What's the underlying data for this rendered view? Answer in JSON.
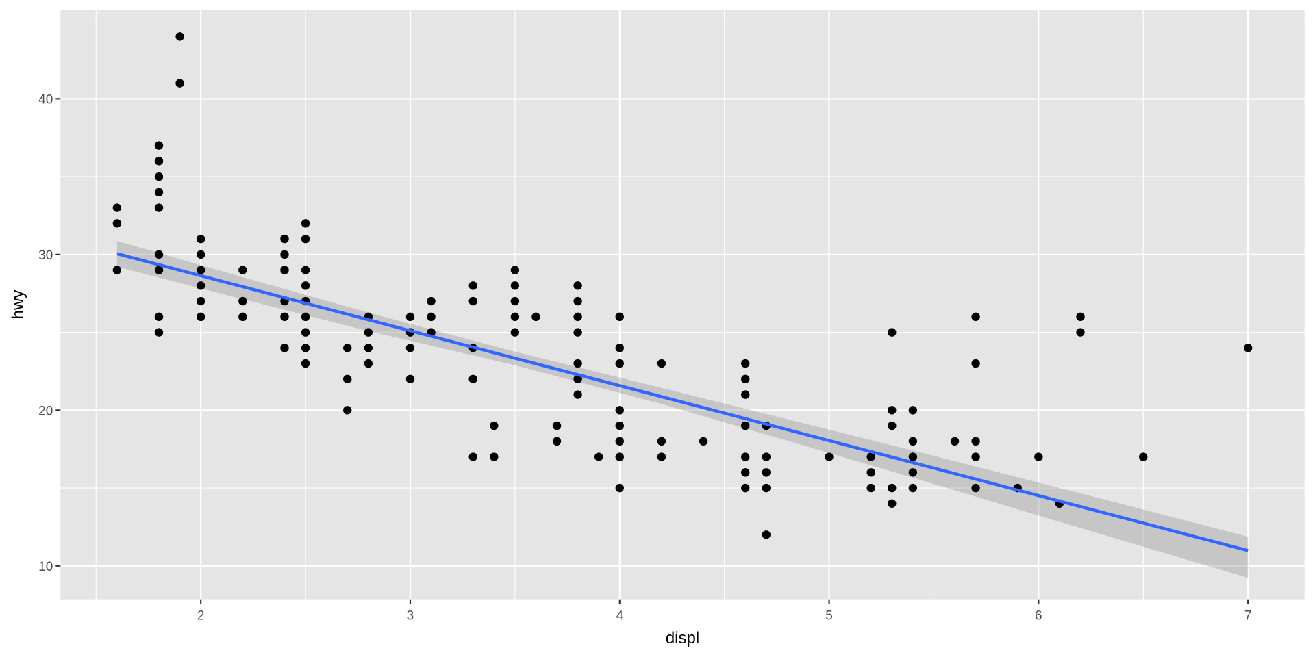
{
  "chart_data": {
    "type": "scatter",
    "title": "",
    "xlabel": "displ",
    "ylabel": "hwy",
    "xlim": [
      1.33,
      7.27
    ],
    "ylim": [
      7.85,
      45.7
    ],
    "x_ticks": [
      2,
      3,
      4,
      5,
      6,
      7
    ],
    "x_tick_labels": [
      "2",
      "3",
      "4",
      "5",
      "6",
      "7"
    ],
    "x_minor": [
      1.5,
      2.5,
      3.5,
      4.5,
      5.5,
      6.5
    ],
    "y_ticks": [
      10,
      20,
      30,
      40
    ],
    "y_tick_labels": [
      "10",
      "20",
      "30",
      "40"
    ],
    "y_minor": [
      15,
      25,
      35,
      45
    ],
    "grid": true,
    "legend": "none",
    "points": [
      [
        1.6,
        29
      ],
      [
        1.6,
        32
      ],
      [
        1.6,
        33
      ],
      [
        1.8,
        25
      ],
      [
        1.8,
        26
      ],
      [
        1.8,
        29
      ],
      [
        1.8,
        30
      ],
      [
        1.8,
        33
      ],
      [
        1.8,
        34
      ],
      [
        1.8,
        35
      ],
      [
        1.8,
        36
      ],
      [
        1.8,
        37
      ],
      [
        1.9,
        41
      ],
      [
        1.9,
        44
      ],
      [
        2.0,
        26
      ],
      [
        2.0,
        27
      ],
      [
        2.0,
        28
      ],
      [
        2.0,
        29
      ],
      [
        2.0,
        30
      ],
      [
        2.0,
        31
      ],
      [
        2.2,
        26
      ],
      [
        2.2,
        27
      ],
      [
        2.2,
        29
      ],
      [
        2.4,
        24
      ],
      [
        2.4,
        26
      ],
      [
        2.4,
        27
      ],
      [
        2.4,
        29
      ],
      [
        2.4,
        30
      ],
      [
        2.4,
        31
      ],
      [
        2.5,
        23
      ],
      [
        2.5,
        24
      ],
      [
        2.5,
        25
      ],
      [
        2.5,
        26
      ],
      [
        2.5,
        27
      ],
      [
        2.5,
        28
      ],
      [
        2.5,
        29
      ],
      [
        2.5,
        31
      ],
      [
        2.5,
        32
      ],
      [
        2.7,
        20
      ],
      [
        2.7,
        22
      ],
      [
        2.7,
        24
      ],
      [
        2.8,
        23
      ],
      [
        2.8,
        24
      ],
      [
        2.8,
        25
      ],
      [
        2.8,
        26
      ],
      [
        3.0,
        22
      ],
      [
        3.0,
        24
      ],
      [
        3.0,
        25
      ],
      [
        3.0,
        26
      ],
      [
        3.1,
        25
      ],
      [
        3.1,
        26
      ],
      [
        3.1,
        27
      ],
      [
        3.3,
        17
      ],
      [
        3.3,
        22
      ],
      [
        3.3,
        24
      ],
      [
        3.3,
        27
      ],
      [
        3.3,
        28
      ],
      [
        3.4,
        17
      ],
      [
        3.4,
        19
      ],
      [
        3.5,
        25
      ],
      [
        3.5,
        26
      ],
      [
        3.5,
        27
      ],
      [
        3.5,
        28
      ],
      [
        3.5,
        29
      ],
      [
        3.6,
        26
      ],
      [
        3.7,
        18
      ],
      [
        3.7,
        19
      ],
      [
        3.8,
        21
      ],
      [
        3.8,
        22
      ],
      [
        3.8,
        23
      ],
      [
        3.8,
        25
      ],
      [
        3.8,
        26
      ],
      [
        3.8,
        27
      ],
      [
        3.8,
        28
      ],
      [
        3.9,
        17
      ],
      [
        4.0,
        15
      ],
      [
        4.0,
        17
      ],
      [
        4.0,
        18
      ],
      [
        4.0,
        19
      ],
      [
        4.0,
        20
      ],
      [
        4.0,
        23
      ],
      [
        4.0,
        24
      ],
      [
        4.0,
        26
      ],
      [
        4.2,
        17
      ],
      [
        4.2,
        18
      ],
      [
        4.2,
        23
      ],
      [
        4.4,
        18
      ],
      [
        4.6,
        15
      ],
      [
        4.6,
        16
      ],
      [
        4.6,
        17
      ],
      [
        4.6,
        19
      ],
      [
        4.6,
        21
      ],
      [
        4.6,
        22
      ],
      [
        4.6,
        23
      ],
      [
        4.7,
        12
      ],
      [
        4.7,
        15
      ],
      [
        4.7,
        16
      ],
      [
        4.7,
        17
      ],
      [
        4.7,
        19
      ],
      [
        5.0,
        17
      ],
      [
        5.2,
        15
      ],
      [
        5.2,
        16
      ],
      [
        5.2,
        17
      ],
      [
        5.3,
        14
      ],
      [
        5.3,
        15
      ],
      [
        5.3,
        19
      ],
      [
        5.3,
        20
      ],
      [
        5.3,
        25
      ],
      [
        5.4,
        15
      ],
      [
        5.4,
        16
      ],
      [
        5.4,
        17
      ],
      [
        5.4,
        18
      ],
      [
        5.4,
        20
      ],
      [
        5.6,
        18
      ],
      [
        5.7,
        15
      ],
      [
        5.7,
        17
      ],
      [
        5.7,
        18
      ],
      [
        5.7,
        23
      ],
      [
        5.7,
        26
      ],
      [
        5.9,
        15
      ],
      [
        6.0,
        17
      ],
      [
        6.1,
        14
      ],
      [
        6.2,
        25
      ],
      [
        6.2,
        26
      ],
      [
        6.5,
        17
      ],
      [
        7.0,
        24
      ]
    ],
    "smooth": {
      "method": "lm",
      "intercept": 35.698,
      "slope": -3.531,
      "x_range": [
        1.6,
        7.0
      ],
      "band_x": [
        1.6,
        2.2,
        2.8,
        3.47,
        4.2,
        4.8,
        5.4,
        6.0,
        6.5,
        7.0
      ],
      "band_upper": [
        30.87,
        28.54,
        26.27,
        23.86,
        21.43,
        19.42,
        17.41,
        15.35,
        13.62,
        11.87
      ],
      "band_lower": [
        29.21,
        27.13,
        25.08,
        22.99,
        20.4,
        18.04,
        15.66,
        13.23,
        11.23,
        9.23
      ],
      "line_color": "#3366FF",
      "band_color": "#999999"
    },
    "colors": {
      "panel_background": "#E5E5E5",
      "grid": "#FFFFFF",
      "point": "#000000",
      "tick_text": "#4D4D4D",
      "tick_mark": "#333333"
    }
  }
}
